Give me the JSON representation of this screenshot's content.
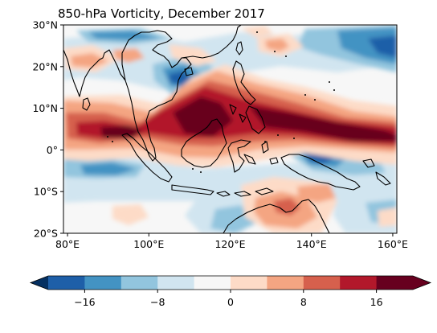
{
  "title": "850-hPa Vorticity, December 2017",
  "map": {
    "extent": {
      "lon_min": 79,
      "lon_max": 161,
      "lat_min": -20,
      "lat_max": 30
    },
    "x_ticks": [
      {
        "lon": 80,
        "label": "80°E"
      },
      {
        "lon": 100,
        "label": "100°E"
      },
      {
        "lon": 120,
        "label": "120°E"
      },
      {
        "lon": 140,
        "label": "140°E"
      },
      {
        "lon": 160,
        "label": "160°E"
      }
    ],
    "y_ticks": [
      {
        "lat": 30,
        "label": "30°N"
      },
      {
        "lat": 20,
        "label": "20°N"
      },
      {
        "lat": 10,
        "label": "10°N"
      },
      {
        "lat": 0,
        "label": "0°"
      },
      {
        "lat": -10,
        "label": "10°S"
      },
      {
        "lat": -20,
        "label": "20°S"
      }
    ]
  },
  "colorbar": {
    "levels": [
      -20,
      -16,
      -12,
      -8,
      -4,
      0,
      4,
      8,
      12,
      16,
      20
    ],
    "colors": [
      "#1e5fa8",
      "#4393c3",
      "#92c5de",
      "#d1e5f0",
      "#f7f7f7",
      "#fddbc7",
      "#f4a582",
      "#d6604d",
      "#b2182b",
      "#67001f"
    ],
    "under_color": "#053061",
    "over_color": "#67001f",
    "tick_values": [
      -16,
      -8,
      0,
      8,
      16
    ],
    "tick_labels": [
      "−16",
      "−8",
      "0",
      "8",
      "16"
    ]
  }
}
